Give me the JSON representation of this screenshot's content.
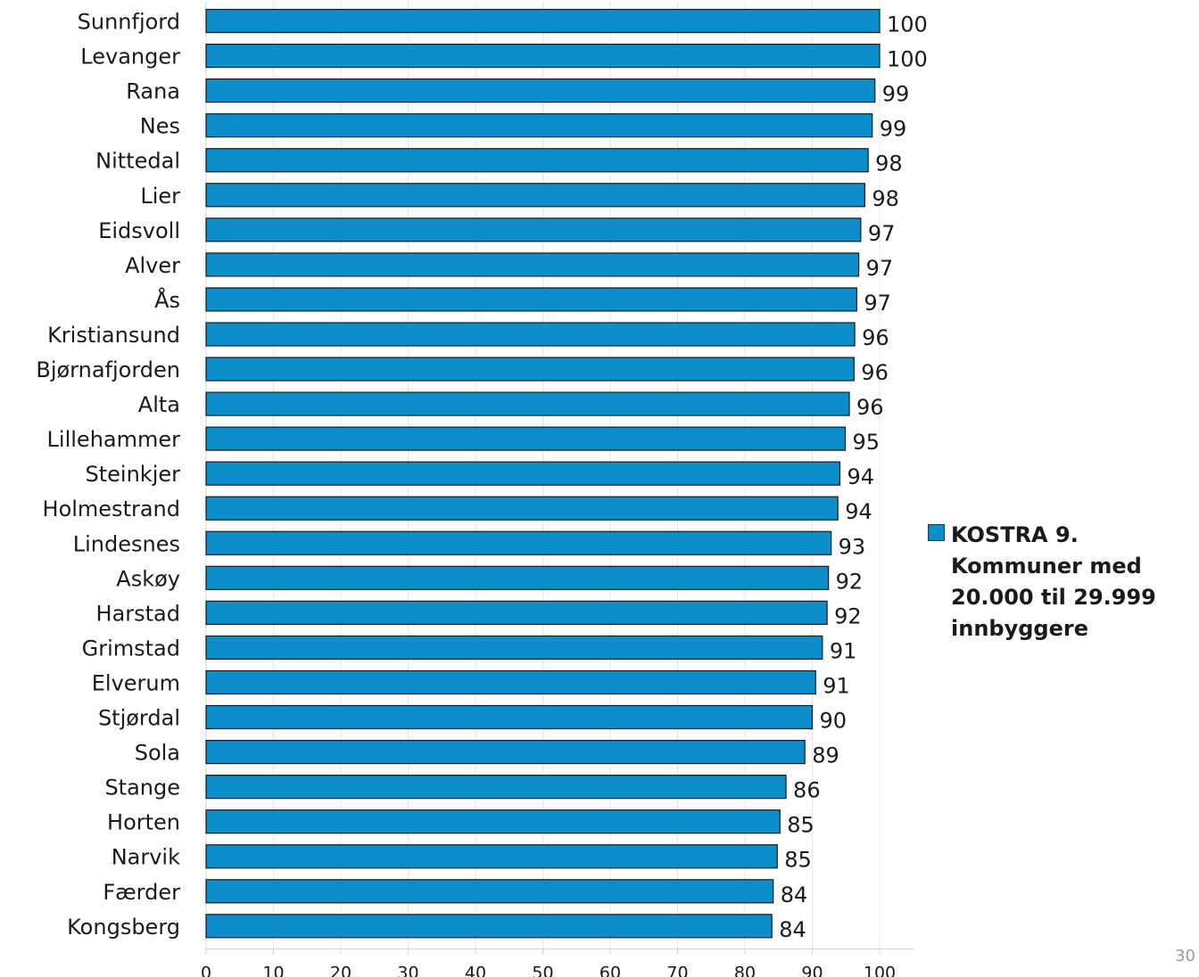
{
  "chart_data": {
    "type": "bar",
    "orientation": "horizontal",
    "categories": [
      "Sunnfjord",
      "Levanger",
      "Rana",
      "Nes",
      "Nittedal",
      "Lier",
      "Eidsvoll",
      "Alver",
      "Ås",
      "Kristiansund",
      "Bjørnafjorden",
      "Alta",
      "Lillehammer",
      "Steinkjer",
      "Holmestrand",
      "Lindesnes",
      "Askøy",
      "Harstad",
      "Grimstad",
      "Elverum",
      "Stjørdal",
      "Sola",
      "Stange",
      "Horten",
      "Narvik",
      "Færder",
      "Kongsberg"
    ],
    "series": [
      {
        "name": "KOSTRA 9. Kommuner med 20.000 til 29.999 innbyggere",
        "values": [
          100.0,
          100.0,
          99.3,
          98.9,
          98.3,
          97.8,
          97.2,
          96.9,
          96.6,
          96.3,
          96.2,
          95.5,
          94.9,
          94.1,
          93.8,
          92.8,
          92.4,
          92.2,
          91.5,
          90.5,
          90.0,
          88.9,
          86.1,
          85.2,
          84.8,
          84.2,
          84.0
        ],
        "labels": [
          "100",
          "100",
          "99",
          "99",
          "98",
          "98",
          "97",
          "97",
          "97",
          "96",
          "96",
          "96",
          "95",
          "94",
          "94",
          "93",
          "92",
          "92",
          "91",
          "91",
          "90",
          "89",
          "86",
          "85",
          "85",
          "84",
          "84"
        ],
        "color": "#0b8ec9"
      }
    ],
    "xlim": [
      0,
      105
    ],
    "xticks": [
      "0",
      "10",
      "20",
      "30",
      "40",
      "50",
      "60",
      "70",
      "80",
      "90",
      "100"
    ],
    "grid": true,
    "legend_position": "right",
    "title": "",
    "xlabel": "",
    "ylabel": ""
  },
  "legend": {
    "label": "KOSTRA 9. Kommuner med 20.000 til 29.999 innbyggere",
    "color": "#0b8ec9"
  },
  "page_number": "30"
}
